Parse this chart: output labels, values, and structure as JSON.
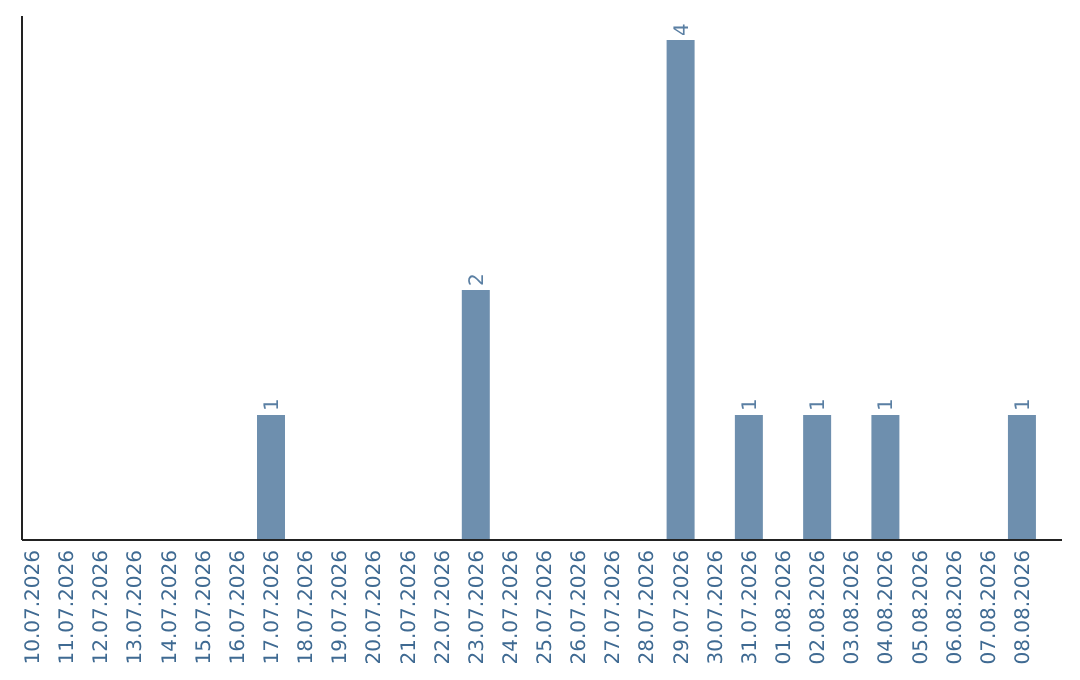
{
  "chart_data": {
    "type": "bar",
    "categories": [
      "10.07.2026",
      "11.07.2026",
      "12.07.2026",
      "13.07.2026",
      "14.07.2026",
      "15.07.2026",
      "16.07.2026",
      "17.07.2026",
      "18.07.2026",
      "19.07.2026",
      "20.07.2026",
      "21.07.2026",
      "22.07.2026",
      "23.07.2026",
      "24.07.2026",
      "25.07.2026",
      "26.07.2026",
      "27.07.2026",
      "28.07.2026",
      "29.07.2026",
      "30.07.2026",
      "31.07.2026",
      "01.08.2026",
      "02.08.2026",
      "03.08.2026",
      "04.08.2026",
      "05.08.2026",
      "06.08.2026",
      "07.08.2026",
      "08.08.2026"
    ],
    "values": [
      0,
      0,
      0,
      0,
      0,
      0,
      0,
      1,
      0,
      0,
      0,
      0,
      0,
      2,
      0,
      0,
      0,
      0,
      0,
      4,
      0,
      1,
      0,
      1,
      0,
      1,
      0,
      0,
      0,
      1
    ],
    "value_labels": [
      null,
      null,
      null,
      null,
      null,
      null,
      null,
      "1",
      null,
      null,
      null,
      null,
      null,
      "2",
      null,
      null,
      null,
      null,
      null,
      "4",
      null,
      "1",
      null,
      "1",
      null,
      "1",
      null,
      null,
      null,
      "1"
    ],
    "color": "#6e8fae"
  }
}
